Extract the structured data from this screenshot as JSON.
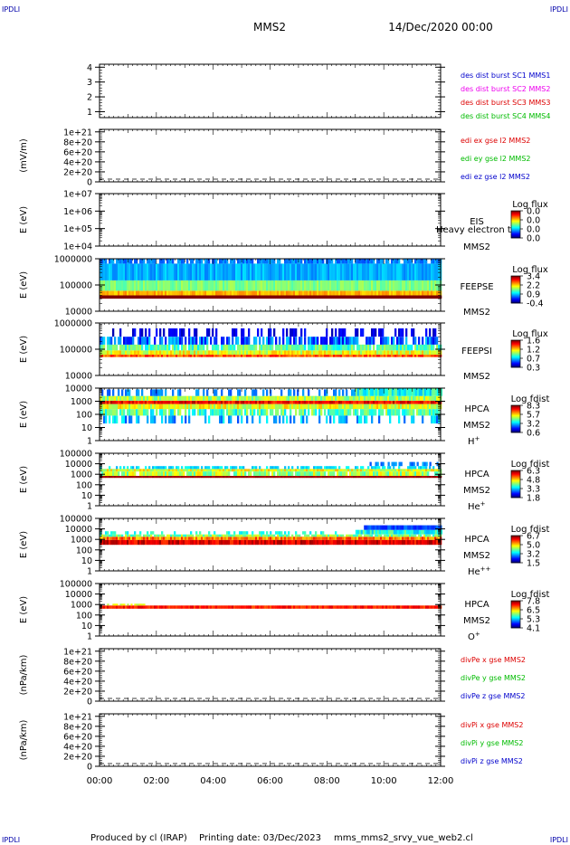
{
  "corner_left": "IPDLI",
  "corner_right": "IPDLI",
  "header": {
    "spacecraft": "MMS2",
    "date": "14/Dec/2020 00:00"
  },
  "footer": {
    "produced_by": "Produced by cl (IRAP)",
    "printing_date": "Printing date: 03/Dec/2023",
    "filename": "mms_mms2_srvy_vue_web2.cl"
  },
  "time_axis": [
    "00:00",
    "02:00",
    "04:00",
    "06:00",
    "08:00",
    "10:00",
    "12:00"
  ],
  "chart_data": [
    {
      "type": "line",
      "ylabel": "",
      "yticks": [
        "1",
        "2",
        "3",
        "4"
      ],
      "ylim": [
        0.6,
        4.2
      ],
      "legend": [
        {
          "text": "des dist burst SC1 MMS1",
          "color": "#0000cc"
        },
        {
          "text": "des dist burst SC2 MMS2",
          "color": "#ee00ee"
        },
        {
          "text": "des dist burst SC3 MMS3",
          "color": "#dd0000"
        },
        {
          "text": "des dist burst SC4 MMS4",
          "color": "#00bb00"
        }
      ],
      "series": []
    },
    {
      "type": "line",
      "ylabel": "(mV/m)",
      "yticks": [
        "0",
        "2e+20",
        "4e+20",
        "6e+20",
        "8e+20",
        "1e+21"
      ],
      "ylim": [
        0,
        1.05e+21
      ],
      "zero_line": true,
      "legend": [
        {
          "text": "edi ex gse l2 MMS2",
          "color": "#dd0000"
        },
        {
          "text": "edi ey gse l2 MMS2",
          "color": "#00bb00"
        },
        {
          "text": "edi ez gse l2 MMS2",
          "color": "#0000cc"
        }
      ],
      "series": []
    },
    {
      "type": "heatmap",
      "ylabel": "E (eV)",
      "yticks": [
        "1e+04",
        "1e+05",
        "1e+06",
        "1e+07"
      ],
      "yscale": "log",
      "instrument": [
        "EIS",
        "MMS2"
      ],
      "overlay_text": "Heavy electron to",
      "colorbar": {
        "title": "Log flux",
        "ticks": [
          "0.0",
          "0.0",
          "0.0",
          "0.0"
        ]
      },
      "bands": []
    },
    {
      "type": "heatmap",
      "ylabel": "E (eV)",
      "yticks": [
        "10000",
        "100000",
        "1000000"
      ],
      "yscale": "log",
      "instrument": [
        "FEEPSE",
        "MMS2"
      ],
      "colorbar": {
        "title": "Log flux",
        "ticks": [
          "3.4",
          "2.2",
          "0.9",
          "-0.4"
        ]
      },
      "bands": [
        {
          "t0": 0,
          "t1": 12,
          "e0": 30000,
          "e1": 40000,
          "level": 1.0,
          "density": 1,
          "jitter": 0
        },
        {
          "t0": 0,
          "t1": 12,
          "e0": 40000,
          "e1": 60000,
          "level": 0.7,
          "density": 1,
          "jitter": 0.05
        },
        {
          "t0": 0,
          "t1": 12,
          "e0": 60000,
          "e1": 150000,
          "level": 0.5,
          "density": 1,
          "jitter": 0.05
        },
        {
          "t0": 0,
          "t1": 12,
          "e0": 150000,
          "e1": 650000,
          "level": 0.3,
          "density": 1,
          "jitter": 0.05
        },
        {
          "t0": 0,
          "t1": 12,
          "e0": 650000,
          "e1": 1000000,
          "level": 0.25,
          "density": 0.8,
          "jitter": 0.05
        }
      ]
    },
    {
      "type": "heatmap",
      "ylabel": "E (eV)",
      "yticks": [
        "10000",
        "100000",
        "1000000"
      ],
      "yscale": "log",
      "instrument": [
        "FEEPSI",
        "MMS2"
      ],
      "colorbar": {
        "title": "Log flux",
        "ticks": [
          "1.6",
          "1.2",
          "0.7",
          "0.3"
        ]
      },
      "bands": [
        {
          "t0": 0,
          "t1": 12,
          "e0": 50000,
          "e1": 62000,
          "level": 0.8,
          "density": 1,
          "jitter": 0.08
        },
        {
          "t0": 0,
          "t1": 12,
          "e0": 62000,
          "e1": 90000,
          "level": 0.6,
          "density": 1,
          "jitter": 0.1
        },
        {
          "t0": 0,
          "t1": 12,
          "e0": 90000,
          "e1": 150000,
          "level": 0.45,
          "density": 0.9,
          "jitter": 0.1
        },
        {
          "t0": 0,
          "t1": 12,
          "e0": 150000,
          "e1": 300000,
          "level": 0.22,
          "density": 0.7,
          "jitter": 0.12
        },
        {
          "t0": 0,
          "t1": 12,
          "e0": 300000,
          "e1": 620000,
          "level": 0.1,
          "density": 0.4,
          "jitter": 0.05
        }
      ]
    },
    {
      "type": "heatmap",
      "ylabel": "E (eV)",
      "yticks": [
        "1",
        "10",
        "100",
        "1000",
        "10000"
      ],
      "yscale": "log",
      "instrument": [
        "HPCA",
        "MMS2",
        "H+"
      ],
      "colorbar": {
        "title": "Log fdist",
        "ticks": [
          "8.3",
          "5.7",
          "3.2",
          "0.6"
        ]
      },
      "bands": [
        {
          "t0": 0,
          "t1": 12,
          "e0": 600,
          "e1": 1100,
          "level": 0.88,
          "density": 1,
          "jitter": 0.08
        },
        {
          "t0": 0,
          "t1": 12,
          "e0": 250,
          "e1": 600,
          "level": 0.6,
          "density": 1,
          "jitter": 0.1
        },
        {
          "t0": 0,
          "t1": 12,
          "e0": 1100,
          "e1": 2500,
          "level": 0.55,
          "density": 1,
          "jitter": 0.1
        },
        {
          "t0": 0,
          "t1": 12,
          "e0": 80,
          "e1": 250,
          "level": 0.45,
          "density": 0.8,
          "jitter": 0.12
        },
        {
          "t0": 0,
          "t1": 12,
          "e0": 20,
          "e1": 80,
          "level": 0.3,
          "density": 0.4,
          "jitter": 0.1
        },
        {
          "t0": 0,
          "t1": 9,
          "e0": 2500,
          "e1": 8000,
          "level": 0.25,
          "density": 0.35,
          "jitter": 0.05
        },
        {
          "t0": 9,
          "t1": 12,
          "e0": 2500,
          "e1": 20000,
          "level": 0.4,
          "density": 1,
          "jitter": 0.1
        }
      ]
    },
    {
      "type": "heatmap",
      "ylabel": "E (eV)",
      "yticks": [
        "1",
        "10",
        "100",
        "1000",
        "10000",
        "100000"
      ],
      "yscale": "log",
      "instrument": [
        "HPCA",
        "MMS2",
        "He+"
      ],
      "colorbar": {
        "title": "Log fdist",
        "ticks": [
          "6.3",
          "4.8",
          "3.3",
          "1.8"
        ]
      },
      "bands": [
        {
          "t0": 0,
          "t1": 12,
          "e0": 450,
          "e1": 700,
          "level": 0.97,
          "density": 1,
          "jitter": 0.02
        },
        {
          "t0": 0,
          "t1": 12,
          "e0": 1800,
          "e1": 3200,
          "level": 0.6,
          "density": 1,
          "jitter": 0.1
        },
        {
          "t0": 0,
          "t1": 12,
          "e0": 700,
          "e1": 1800,
          "level": 0.55,
          "density": 0.9,
          "jitter": 0.12
        },
        {
          "t0": 0,
          "t1": 12,
          "e0": 3200,
          "e1": 6000,
          "level": 0.35,
          "density": 0.6,
          "jitter": 0.05
        },
        {
          "t0": 9.5,
          "t1": 12,
          "e0": 6000,
          "e1": 15000,
          "level": 0.25,
          "density": 0.5,
          "jitter": 0.05
        }
      ]
    },
    {
      "type": "heatmap",
      "ylabel": "E (eV)",
      "yticks": [
        "1",
        "10",
        "100",
        "1000",
        "10000",
        "100000"
      ],
      "yscale": "log",
      "instrument": [
        "HPCA",
        "MMS2",
        "He++"
      ],
      "colorbar": {
        "title": "Log fdist",
        "ticks": [
          "6.7",
          "5.0",
          "3.2",
          "1.5"
        ]
      },
      "bands": [
        {
          "t0": 0,
          "t1": 12,
          "e0": 300,
          "e1": 900,
          "level": 0.9,
          "density": 1,
          "jitter": 0.08
        },
        {
          "t0": 0,
          "t1": 12,
          "e0": 900,
          "e1": 1800,
          "level": 0.75,
          "density": 1,
          "jitter": 0.1
        },
        {
          "t0": 0,
          "t1": 12,
          "e0": 1800,
          "e1": 3000,
          "level": 0.5,
          "density": 0.9,
          "jitter": 0.1
        },
        {
          "t0": 0,
          "t1": 9,
          "e0": 3000,
          "e1": 6000,
          "level": 0.4,
          "density": 0.35,
          "jitter": 0.05
        },
        {
          "t0": 9,
          "t1": 12,
          "e0": 3000,
          "e1": 8000,
          "level": 0.4,
          "density": 1,
          "jitter": 0.1
        },
        {
          "t0": 9.3,
          "t1": 12,
          "e0": 8000,
          "e1": 22000,
          "level": 0.2,
          "density": 1,
          "jitter": 0.05
        }
      ]
    },
    {
      "type": "heatmap",
      "ylabel": "E (eV)",
      "yticks": [
        "1",
        "10",
        "100",
        "1000",
        "10000",
        "100000"
      ],
      "yscale": "log",
      "instrument": [
        "HPCA",
        "MMS2",
        "O+"
      ],
      "colorbar": {
        "title": "Log fdist",
        "ticks": [
          "7.8",
          "6.5",
          "5.3",
          "4.1"
        ]
      },
      "bands": [
        {
          "t0": 0,
          "t1": 12,
          "e0": 400,
          "e1": 800,
          "level": 0.85,
          "density": 1,
          "jitter": 0.06
        },
        {
          "t0": 0.2,
          "t1": 1.6,
          "e0": 800,
          "e1": 1200,
          "level": 0.6,
          "density": 0.7,
          "jitter": 0.05
        }
      ]
    },
    {
      "type": "line",
      "ylabel": "(nPa/km)",
      "yticks": [
        "0",
        "2e+20",
        "4e+20",
        "6e+20",
        "8e+20",
        "1e+21"
      ],
      "ylim": [
        0,
        1.05e+21
      ],
      "zero_line": true,
      "legend": [
        {
          "text": "divPe x gse MMS2",
          "color": "#dd0000"
        },
        {
          "text": "divPe y gse MMS2",
          "color": "#00bb00"
        },
        {
          "text": "divPe z gse MMS2",
          "color": "#0000cc"
        }
      ],
      "series": []
    },
    {
      "type": "line",
      "ylabel": "(nPa/km)",
      "yticks": [
        "0",
        "2e+20",
        "4e+20",
        "6e+20",
        "8e+20",
        "1e+21"
      ],
      "ylim": [
        0,
        1.05e+21
      ],
      "zero_line": true,
      "legend": [
        {
          "text": "divPi x gse MMS2",
          "color": "#dd0000"
        },
        {
          "text": "divPi y gse MMS2",
          "color": "#00bb00"
        },
        {
          "text": "divPi z gse MMS2",
          "color": "#0000cc"
        }
      ],
      "series": []
    }
  ]
}
